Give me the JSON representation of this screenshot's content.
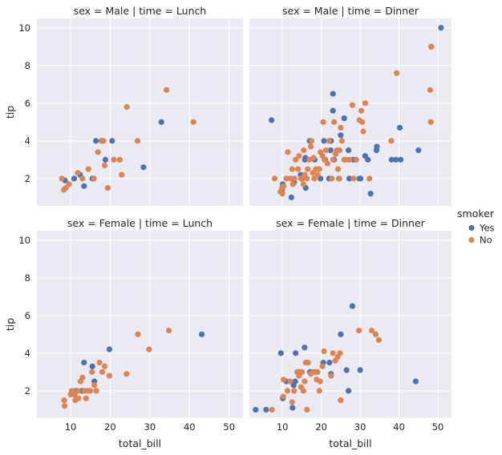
{
  "chart_data": {
    "type": "scatter",
    "grid": true,
    "background": "#eaeaf2",
    "xlabel": "total_bill",
    "ylabel": "tip",
    "xlim": [
      1.5,
      53.5
    ],
    "ylim": [
      0.55,
      10.5
    ],
    "xticks": [
      10,
      20,
      30,
      40,
      50
    ],
    "yticks": [
      2,
      4,
      6,
      8,
      10
    ],
    "legend": {
      "title": "smoker",
      "placement": "right",
      "entries": [
        {
          "name": "Yes",
          "color": "#4c72b0"
        },
        {
          "name": "No",
          "color": "#dd8452"
        }
      ]
    },
    "panels": [
      {
        "title": "sex = Male | time = Lunch",
        "series": [
          {
            "name": "Yes",
            "points": [
              [
                8.6,
                1.9
              ],
              [
                10.9,
                2.0
              ],
              [
                12.4,
                2.2
              ],
              [
                13.4,
                1.6
              ],
              [
                15.5,
                2.0
              ],
              [
                16.4,
                4.0
              ],
              [
                17.8,
                4.0
              ],
              [
                18.8,
                3.0
              ],
              [
                20.5,
                4.0
              ],
              [
                28.4,
                2.6
              ],
              [
                32.9,
                5.0
              ]
            ]
          },
          {
            "name": "No",
            "points": [
              [
                7.8,
                2.0
              ],
              [
                8.3,
                1.4
              ],
              [
                8.8,
                1.5
              ],
              [
                9.6,
                1.7
              ],
              [
                11.8,
                2.3
              ],
              [
                13.0,
                2.0
              ],
              [
                14.5,
                2.5
              ],
              [
                15.9,
                2.0
              ],
              [
                16.9,
                3.4
              ],
              [
                17.9,
                4.0
              ],
              [
                18.3,
                4.0
              ],
              [
                18.6,
                2.7
              ],
              [
                19.4,
                1.5
              ],
              [
                20.9,
                3.0
              ],
              [
                22.4,
                3.0
              ],
              [
                22.9,
                2.2
              ],
              [
                24.2,
                5.8
              ],
              [
                26.9,
                4.0
              ],
              [
                34.2,
                6.7
              ],
              [
                41.0,
                5.0
              ]
            ]
          }
        ]
      },
      {
        "title": "sex = Male | time = Dinner",
        "series": [
          {
            "name": "Yes",
            "points": [
              [
                7.2,
                5.1
              ],
              [
                9.9,
                1.4
              ],
              [
                10.1,
                1.7
              ],
              [
                12.3,
                1.0
              ],
              [
                13.0,
                1.8
              ],
              [
                14.7,
                2.2
              ],
              [
                15.0,
                2.0
              ],
              [
                15.8,
                3.0
              ],
              [
                15.9,
                3.1
              ],
              [
                16.0,
                1.5
              ],
              [
                17.0,
                4.0
              ],
              [
                18.3,
                3.0
              ],
              [
                19.8,
                2.0
              ],
              [
                20.7,
                4.0
              ],
              [
                21.0,
                3.0
              ],
              [
                22.0,
                2.0
              ],
              [
                22.4,
                3.5
              ],
              [
                22.5,
                4.0
              ],
              [
                23.0,
                5.6
              ],
              [
                23.0,
                6.5
              ],
              [
                23.3,
                3.0
              ],
              [
                24.6,
                2.0
              ],
              [
                25.0,
                4.3
              ],
              [
                25.9,
                5.2
              ],
              [
                27.0,
                3.5
              ],
              [
                27.2,
                2.0
              ],
              [
                28.2,
                3.0
              ],
              [
                28.9,
                3.0
              ],
              [
                29.8,
                2.0
              ],
              [
                30.1,
                2.0
              ],
              [
                31.3,
                3.2
              ],
              [
                32.0,
                3.0
              ],
              [
                32.7,
                1.2
              ],
              [
                34.2,
                3.5
              ],
              [
                34.3,
                3.7
              ],
              [
                38.1,
                3.0
              ],
              [
                39.2,
                3.0
              ],
              [
                40.2,
                4.7
              ],
              [
                40.4,
                3.0
              ],
              [
                45.0,
                3.5
              ],
              [
                48.3,
                9.0
              ],
              [
                50.8,
                10.0
              ]
            ]
          },
          {
            "name": "No",
            "points": [
              [
                8.0,
                2.0
              ],
              [
                9.5,
                1.3
              ],
              [
                9.9,
                1.5
              ],
              [
                10.0,
                1.2
              ],
              [
                10.3,
                1.6
              ],
              [
                11.0,
                2.0
              ],
              [
                11.4,
                3.4
              ],
              [
                12.0,
                2.0
              ],
              [
                12.5,
                2.5
              ],
              [
                12.7,
                1.7
              ],
              [
                13.1,
                2.0
              ],
              [
                13.4,
                3.0
              ],
              [
                14.0,
                2.5
              ],
              [
                14.3,
                3.2
              ],
              [
                14.8,
                2.0
              ],
              [
                15.4,
                1.7
              ],
              [
                15.5,
                3.5
              ],
              [
                15.7,
                2.2
              ],
              [
                16.3,
                2.0
              ],
              [
                16.5,
                2.5
              ],
              [
                16.9,
                3.0
              ],
              [
                17.3,
                3.7
              ],
              [
                17.5,
                4.0
              ],
              [
                17.8,
                2.3
              ],
              [
                18.0,
                3.1
              ],
              [
                18.2,
                2.0
              ],
              [
                18.6,
                2.5
              ],
              [
                19.1,
                2.2
              ],
              [
                19.5,
                2.5
              ],
              [
                19.8,
                3.4
              ],
              [
                20.3,
                3.2
              ],
              [
                20.5,
                5.0
              ],
              [
                20.8,
                3.0
              ],
              [
                21.2,
                3.5
              ],
              [
                21.6,
                2.8
              ],
              [
                22.0,
                4.0
              ],
              [
                22.7,
                2.0
              ],
              [
                23.0,
                3.0
              ],
              [
                23.3,
                5.0
              ],
              [
                23.7,
                3.3
              ],
              [
                24.0,
                3.5
              ],
              [
                24.3,
                2.5
              ],
              [
                24.5,
                2.0
              ],
              [
                24.7,
                3.5
              ],
              [
                25.0,
                4.7
              ],
              [
                25.3,
                4.0
              ],
              [
                25.9,
                3.0
              ],
              [
                26.5,
                3.0
              ],
              [
                27.3,
                3.0
              ],
              [
                28.0,
                5.9
              ],
              [
                28.3,
                2.0
              ],
              [
                29.0,
                3.0
              ],
              [
                29.8,
                5.1
              ],
              [
                30.3,
                5.6
              ],
              [
                30.5,
                5.0
              ],
              [
                30.8,
                4.5
              ],
              [
                31.3,
                6.0
              ],
              [
                32.4,
                2.0
              ],
              [
                38.0,
                4.0
              ],
              [
                39.4,
                7.6
              ],
              [
                48.0,
                6.7
              ],
              [
                48.2,
                5.0
              ],
              [
                48.3,
                9.0
              ]
            ]
          }
        ]
      },
      {
        "title": "sex = Female | time = Lunch",
        "series": [
          {
            "name": "Yes",
            "points": [
              [
                11.4,
                2.0
              ],
              [
                12.9,
                2.0
              ],
              [
                13.4,
                3.5
              ],
              [
                15.5,
                3.3
              ],
              [
                16.0,
                2.5
              ],
              [
                19.8,
                4.2
              ],
              [
                43.1,
                5.0
              ]
            ]
          },
          {
            "name": "No",
            "points": [
              [
                8.4,
                1.5
              ],
              [
                8.5,
                1.2
              ],
              [
                10.0,
                1.8
              ],
              [
                10.3,
                2.0
              ],
              [
                11.0,
                1.8
              ],
              [
                11.2,
                1.5
              ],
              [
                11.8,
                2.0
              ],
              [
                12.0,
                1.6
              ],
              [
                12.5,
                2.5
              ],
              [
                13.0,
                2.7
              ],
              [
                13.4,
                2.0
              ],
              [
                13.9,
                1.6
              ],
              [
                14.3,
                2.0
              ],
              [
                15.0,
                2.0
              ],
              [
                15.4,
                3.0
              ],
              [
                16.0,
                2.3
              ],
              [
                16.5,
                2.0
              ],
              [
                17.3,
                3.5
              ],
              [
                18.0,
                3.0
              ],
              [
                18.6,
                3.3
              ],
              [
                19.8,
                2.8
              ],
              [
                24.1,
                2.9
              ],
              [
                27.0,
                5.0
              ],
              [
                29.8,
                4.2
              ],
              [
                34.8,
                5.2
              ]
            ]
          }
        ]
      },
      {
        "title": "sex = Female | time = Dinner",
        "series": [
          {
            "name": "Yes",
            "points": [
              [
                3.1,
                1.0
              ],
              [
                5.8,
                1.0
              ],
              [
                9.6,
                4.0
              ],
              [
                10.1,
                1.6
              ],
              [
                11.0,
                2.5
              ],
              [
                12.6,
                1.1
              ],
              [
                12.9,
                2.3
              ],
              [
                13.3,
                2.5
              ],
              [
                13.4,
                4.0
              ],
              [
                14.1,
                3.0
              ],
              [
                15.0,
                3.0
              ],
              [
                15.7,
                4.3
              ],
              [
                16.3,
                3.5
              ],
              [
                17.1,
                3.0
              ],
              [
                19.0,
                3.0
              ],
              [
                20.5,
                3.5
              ],
              [
                22.1,
                3.5
              ],
              [
                22.5,
                2.9
              ],
              [
                25.0,
                5.0
              ],
              [
                26.5,
                3.1
              ],
              [
                27.0,
                2.0
              ],
              [
                28.0,
                6.5
              ],
              [
                30.0,
                3.1
              ],
              [
                44.3,
                2.5
              ]
            ]
          },
          {
            "name": "No",
            "points": [
              [
                7.3,
                1.0
              ],
              [
                10.2,
                1.7
              ],
              [
                10.3,
                2.6
              ],
              [
                11.3,
                2.0
              ],
              [
                12.0,
                2.5
              ],
              [
                12.5,
                1.4
              ],
              [
                13.0,
                2.0
              ],
              [
                13.8,
                3.0
              ],
              [
                14.3,
                2.8
              ],
              [
                14.8,
                2.2
              ],
              [
                15.0,
                3.0
              ],
              [
                15.4,
                2.0
              ],
              [
                15.7,
                2.5
              ],
              [
                16.0,
                3.5
              ],
              [
                16.3,
                1.0
              ],
              [
                16.6,
                3.5
              ],
              [
                17.3,
                2.9
              ],
              [
                17.9,
                3.0
              ],
              [
                18.3,
                3.0
              ],
              [
                18.8,
                2.6
              ],
              [
                19.0,
                3.0
              ],
              [
                19.5,
                2.0
              ],
              [
                19.7,
                2.5
              ],
              [
                20.3,
                3.3
              ],
              [
                20.7,
                4.1
              ],
              [
                22.5,
                2.8
              ],
              [
                23.0,
                4.0
              ],
              [
                23.6,
                3.6
              ],
              [
                24.2,
                3.8
              ],
              [
                24.8,
                4.0
              ],
              [
                25.0,
                1.5
              ],
              [
                29.7,
                5.2
              ],
              [
                33.0,
                5.2
              ],
              [
                34.0,
                5.0
              ],
              [
                34.8,
                4.7
              ]
            ]
          }
        ]
      }
    ]
  }
}
